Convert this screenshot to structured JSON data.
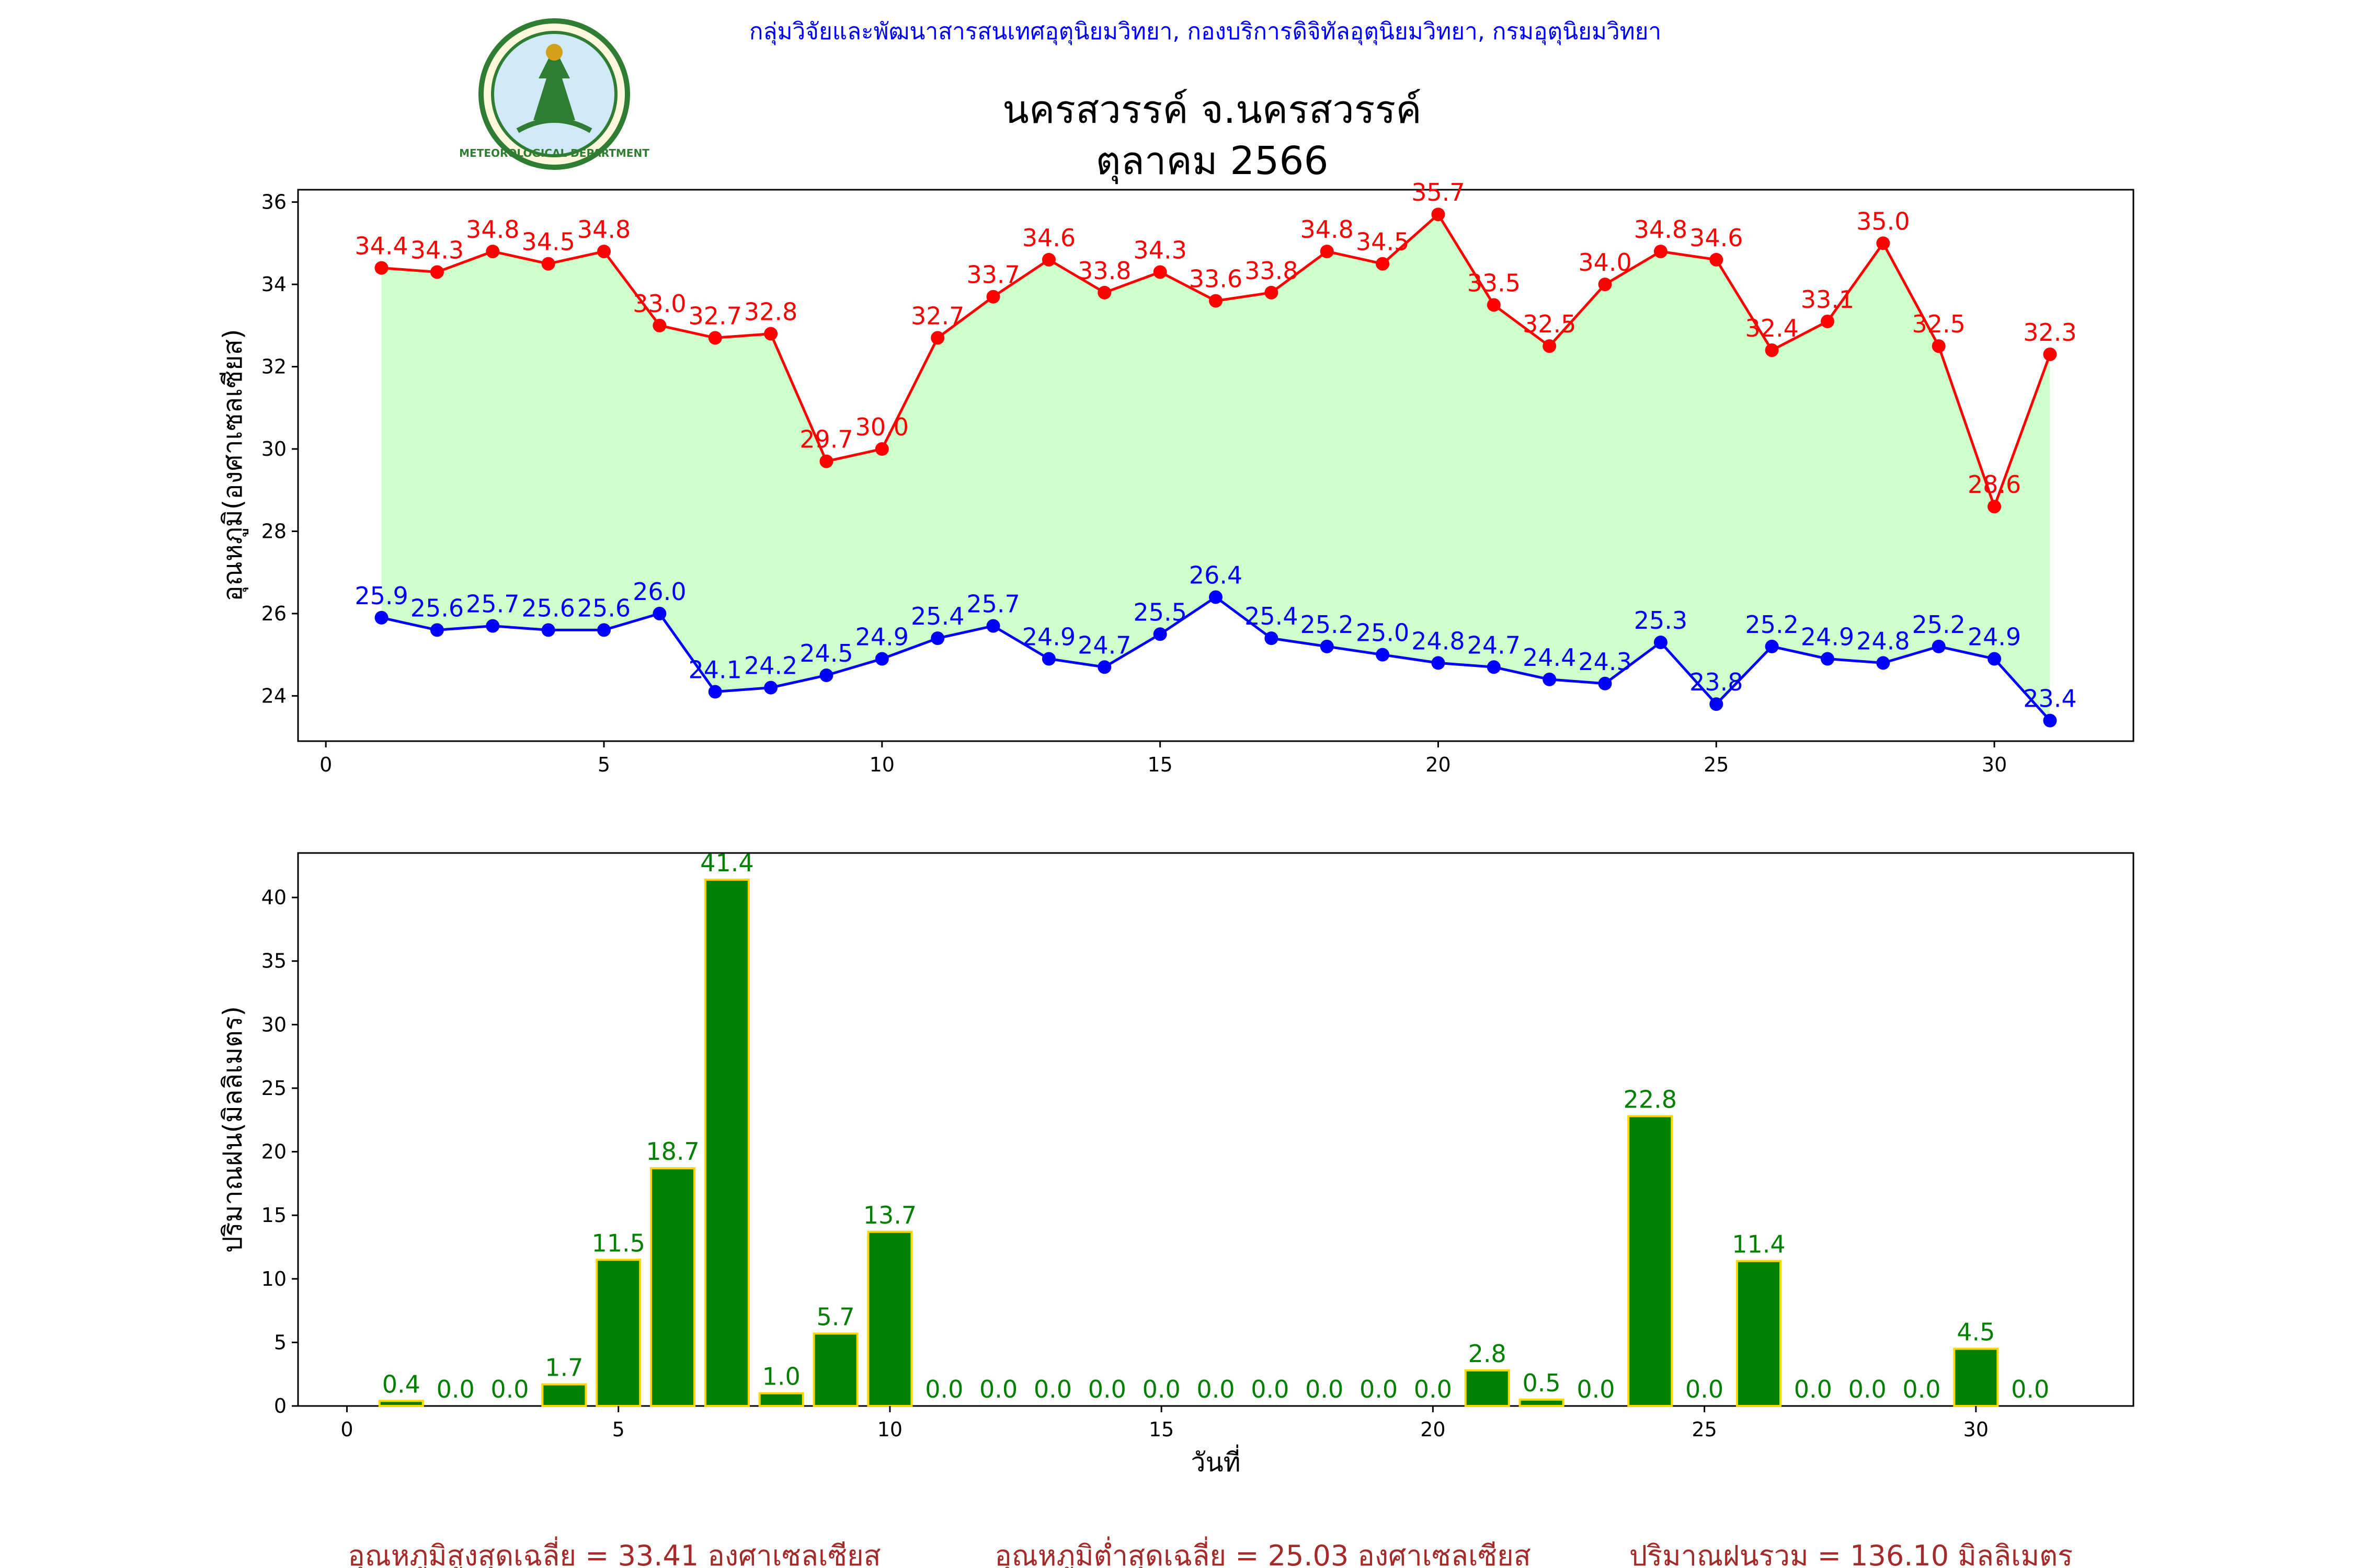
{
  "header": {
    "source": "กลุ่มวิจัยและพัฒนาสารสนเทศอุตุนิยมวิทยา, กองบริการดิจิทัลอุตุนิยมวิทยา, กรมอุตุนิยมวิทยา",
    "title_line1": "นครสวรรค์  จ.นครสวรรค์",
    "title_line2": "ตุลาคม 2566",
    "logo_text": "METEOROLOGICAL DEPARTMENT"
  },
  "colors": {
    "source_text": "#0000ff",
    "max_temp": "#ff0000",
    "min_temp": "#0000ff",
    "fill": "#ccffcc",
    "bar_fill": "#008000",
    "bar_edge": "#ffd700",
    "bar_label": "#008000",
    "summary_text": "#a52a2a"
  },
  "chart_data": [
    {
      "type": "line",
      "ylabel": "อุณหภูมิ(องศาเซลเซียส)",
      "xlim": [
        -0.5,
        32.5
      ],
      "ylim": [
        22.9,
        36.3
      ],
      "xticks": [
        0,
        5,
        10,
        15,
        20,
        25,
        30
      ],
      "yticks": [
        24,
        26,
        28,
        30,
        32,
        34,
        36
      ],
      "x": [
        1,
        2,
        3,
        4,
        5,
        6,
        7,
        8,
        9,
        10,
        11,
        12,
        13,
        14,
        15,
        16,
        17,
        18,
        19,
        20,
        21,
        22,
        23,
        24,
        25,
        26,
        27,
        28,
        29,
        30,
        31
      ],
      "fill_between": true,
      "series": [
        {
          "values": [
            34.4,
            34.3,
            34.8,
            34.5,
            34.8,
            33.0,
            32.7,
            32.8,
            29.7,
            30.0,
            32.7,
            33.7,
            34.6,
            33.8,
            34.3,
            33.6,
            33.8,
            34.8,
            34.5,
            35.7,
            33.5,
            32.5,
            34.0,
            34.8,
            34.6,
            32.4,
            33.1,
            35.0,
            32.5,
            28.6,
            32.3
          ]
        },
        {
          "values": [
            25.9,
            25.6,
            25.7,
            25.6,
            25.6,
            26.0,
            24.1,
            24.2,
            24.5,
            24.9,
            25.4,
            25.7,
            24.9,
            24.7,
            25.5,
            26.4,
            25.4,
            25.2,
            25.0,
            24.8,
            24.7,
            24.4,
            24.3,
            25.3,
            23.8,
            25.2,
            24.9,
            24.8,
            25.2,
            24.9,
            23.4
          ]
        }
      ]
    },
    {
      "type": "bar",
      "xlabel": "วันที่",
      "ylabel": "ปริมาณฝน(มิลลิเมตร)",
      "xlim": [
        -0.9,
        32.9
      ],
      "ylim": [
        0,
        43.5
      ],
      "xticks": [
        0,
        5,
        10,
        15,
        20,
        25,
        30
      ],
      "yticks": [
        0,
        5,
        10,
        15,
        20,
        25,
        30,
        35,
        40
      ],
      "x": [
        1,
        2,
        3,
        4,
        5,
        6,
        7,
        8,
        9,
        10,
        11,
        12,
        13,
        14,
        15,
        16,
        17,
        18,
        19,
        20,
        21,
        22,
        23,
        24,
        25,
        26,
        27,
        28,
        29,
        30,
        31
      ],
      "values": [
        0.4,
        0.0,
        0.0,
        1.7,
        11.5,
        18.7,
        41.4,
        1.0,
        5.7,
        13.7,
        0.0,
        0.0,
        0.0,
        0.0,
        0.0,
        0.0,
        0.0,
        0.0,
        0.0,
        0.0,
        2.8,
        0.5,
        0.0,
        22.8,
        0.0,
        11.4,
        0.0,
        0.0,
        0.0,
        4.5,
        0.0
      ]
    }
  ],
  "summary": {
    "max_avg": "อุณหภูมิสูงสุดเฉลี่ย = 33.41 องศาเซลเซียส",
    "min_avg": "อุณหภูมิต่ำสุดเฉลี่ย = 25.03 องศาเซลเซียส",
    "rain_total": "ปริมาณฝนรวม = 136.10 มิลลิเมตร"
  }
}
